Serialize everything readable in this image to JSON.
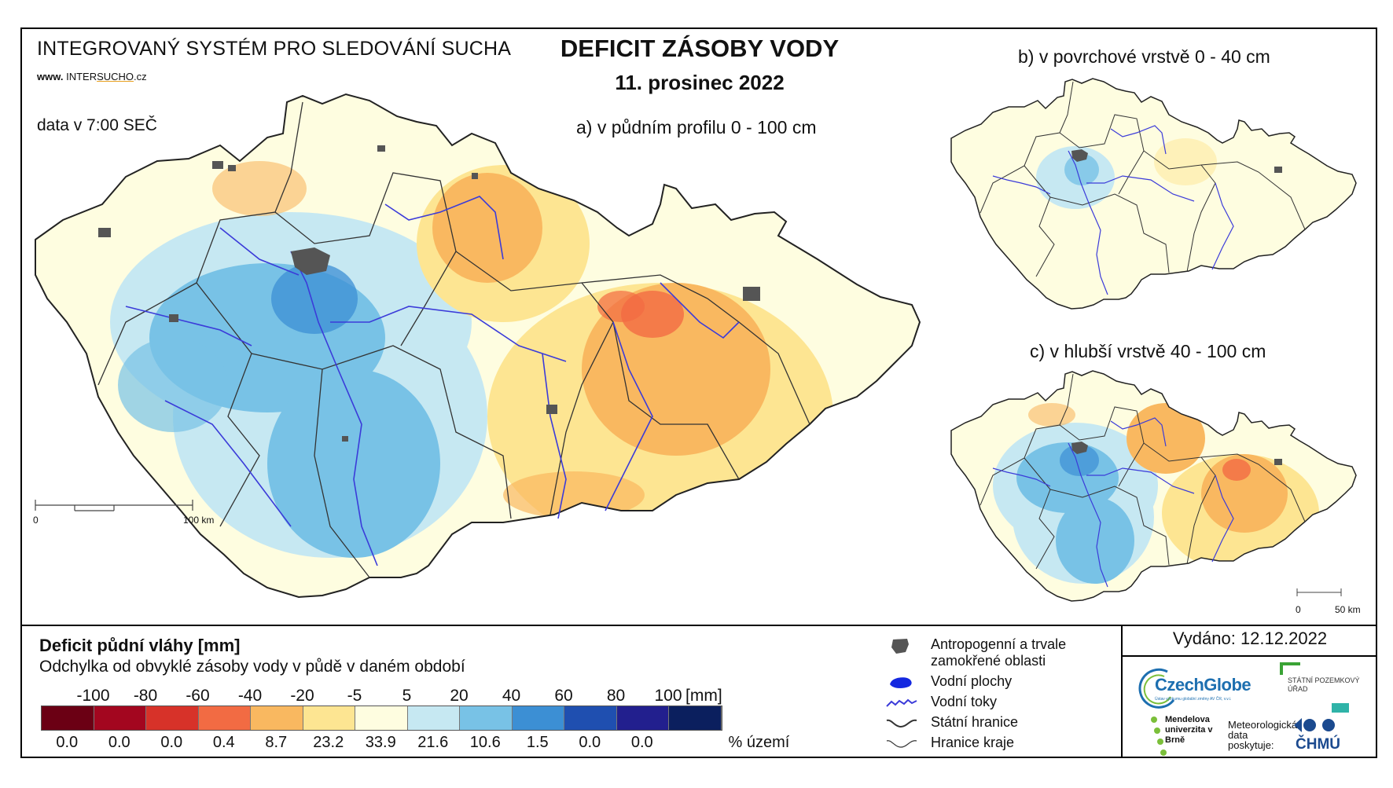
{
  "header": {
    "system_title": "INTEGROVANÝ SYSTÉM PRO SLEDOVÁNÍ SUCHA",
    "www_prefix": "www.",
    "www_inter": "INTER",
    "www_sucho": "SUCHO",
    "www_suffix": ".cz",
    "data_time": "data v 7:00 SEČ",
    "main_title": "DEFICIT ZÁSOBY VODY",
    "date": "11. prosinec 2022"
  },
  "maps": {
    "a": {
      "title": "a) v půdním profilu 0 - 100 cm",
      "scale_start": "0",
      "scale_end": "100 km"
    },
    "b": {
      "title": "b) v povrchové vrstvě 0 - 40 cm"
    },
    "c": {
      "title": "c) v hlubší vrstvě 40 - 100 cm",
      "scale_start": "0",
      "scale_end": "50 km"
    }
  },
  "legend": {
    "title": "Deficit půdní vláhy  [mm]",
    "subtitle": "Odchylka od obvyklé zásoby vody v půdě v daném období",
    "ticks": [
      "-100",
      "-80",
      "-60",
      "-40",
      "-20",
      "-5",
      "5",
      "20",
      "40",
      "60",
      "80",
      "100"
    ],
    "unit": "[mm]",
    "classes": [
      {
        "color": "#6b0014",
        "pct": "0.0"
      },
      {
        "color": "#a3061f",
        "pct": "0.0"
      },
      {
        "color": "#d73229",
        "pct": "0.0"
      },
      {
        "color": "#f26b43",
        "pct": "0.4"
      },
      {
        "color": "#f9b860",
        "pct": "8.7"
      },
      {
        "color": "#fde592",
        "pct": "23.2"
      },
      {
        "color": "#fefde0",
        "pct": "33.9"
      },
      {
        "color": "#c6e8f2",
        "pct": "21.6"
      },
      {
        "color": "#78c2e6",
        "pct": "10.6"
      },
      {
        "color": "#3c8fd4",
        "pct": "1.5"
      },
      {
        "color": "#1f4fb0",
        "pct": "0.0"
      },
      {
        "color": "#221f8e",
        "pct": "0.0"
      },
      {
        "color": "#0b1f5e",
        "pct": ""
      }
    ],
    "pct_unit": "% území"
  },
  "symbols": [
    {
      "icon": "urban-area-icon",
      "label": "Antropogenní a trvale zamokřené oblasti"
    },
    {
      "icon": "water-body-icon",
      "label": "Vodní plochy"
    },
    {
      "icon": "river-icon",
      "label": "Vodní toky"
    },
    {
      "icon": "state-border-icon",
      "label": "Státní hranice"
    },
    {
      "icon": "region-border-icon",
      "label": "Hranice kraje"
    }
  ],
  "issued": "Vydáno: 12.12.2022",
  "logos": {
    "czechglobe": "CzechGlobe",
    "czechglobe_sub": "Ústav výzkumu globální změny AV ČR, v.v.i.",
    "spu": "STÁTNÍ POZEMKOVÝ ÚŘAD",
    "mendel": "Mendelova univerzita v Brně",
    "meteo": "Meteorologická data poskytuje:",
    "chmu": "ČHMÚ"
  }
}
